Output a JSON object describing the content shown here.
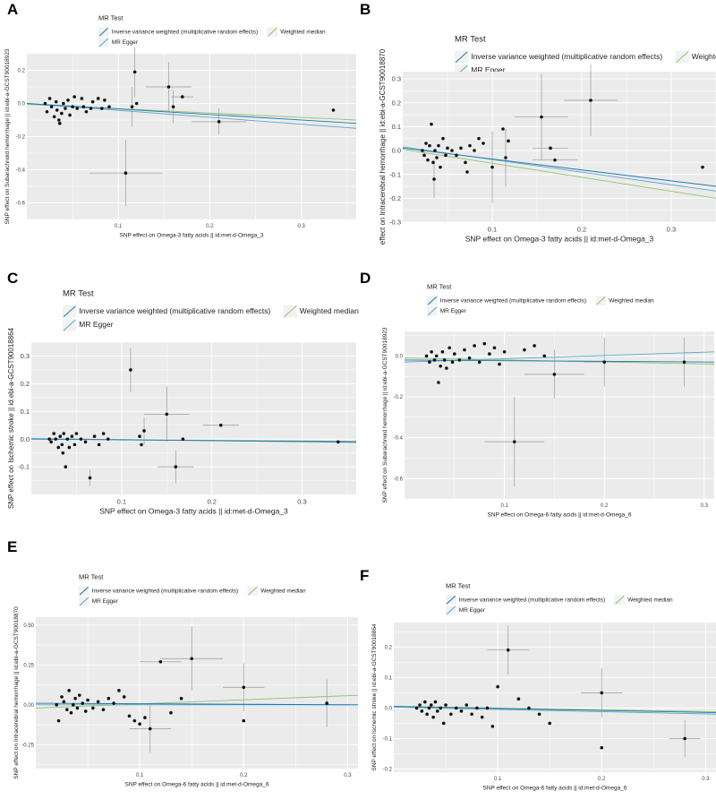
{
  "legend_title": "MR Test",
  "legend_items": [
    {
      "label": "Inverse variance weighted (multiplicative random effects)",
      "color": "#1f77b4"
    },
    {
      "label": "MR Egger",
      "color": "#5da6c9"
    },
    {
      "label": "Weighted median",
      "color": "#91c36b"
    }
  ],
  "colors": {
    "panel_bg": "#ebebeb",
    "grid": "#ffffff",
    "point": "#111111",
    "errorbar": "#9a9a9a"
  },
  "chart_data": [
    {
      "panel": "A",
      "type": "scatter",
      "xlabel": "SNP effect on Omega-3 fatty acids || id:met-d-Omega_3",
      "ylabel": "SNP effect on Subarachnoid hemorrhage || id:ebi-a-GCST90018923",
      "xlim": [
        0,
        0.36
      ],
      "ylim": [
        -0.7,
        0.3
      ],
      "xticks": [
        0.1,
        0.2,
        0.3
      ],
      "xtick_labels": [
        "0.1",
        "0.2",
        "0.3"
      ],
      "yticks": [
        0.2,
        0.0,
        -0.2,
        -0.4,
        -0.6
      ],
      "ytick_labels": [
        "0.2",
        "0.0",
        "-0.2",
        "-0.4",
        "-0.6"
      ],
      "points": [
        [
          0.02,
          0.0
        ],
        [
          0.022,
          -0.05
        ],
        [
          0.025,
          0.03
        ],
        [
          0.027,
          -0.02
        ],
        [
          0.03,
          -0.08
        ],
        [
          0.032,
          0.01
        ],
        [
          0.033,
          -0.04
        ],
        [
          0.035,
          -0.1
        ],
        [
          0.036,
          -0.12
        ],
        [
          0.038,
          -0.06
        ],
        [
          0.04,
          0.0
        ],
        [
          0.042,
          -0.03
        ],
        [
          0.045,
          0.02
        ],
        [
          0.047,
          -0.07
        ],
        [
          0.05,
          -0.02
        ],
        [
          0.052,
          0.04
        ],
        [
          0.055,
          -0.03
        ],
        [
          0.06,
          0.03
        ],
        [
          0.062,
          -0.02
        ],
        [
          0.065,
          -0.05
        ],
        [
          0.07,
          -0.03
        ],
        [
          0.072,
          0.01
        ],
        [
          0.078,
          0.03
        ],
        [
          0.082,
          -0.03
        ],
        [
          0.085,
          0.02
        ],
        [
          0.09,
          -0.02
        ],
        [
          0.108,
          -0.42
        ],
        [
          0.115,
          -0.02
        ],
        [
          0.118,
          0.19
        ],
        [
          0.12,
          0.0
        ],
        [
          0.155,
          0.1
        ],
        [
          0.16,
          -0.02
        ],
        [
          0.17,
          0.04
        ],
        [
          0.21,
          -0.11
        ],
        [
          0.335,
          -0.04
        ]
      ],
      "x_err": [
        [
          0.108,
          0.04
        ],
        [
          0.155,
          0.025
        ],
        [
          0.21,
          0.03
        ],
        [
          0.17,
          0.012
        ]
      ],
      "y_err": [
        [
          0.118,
          0.15
        ],
        [
          0.108,
          0.2
        ],
        [
          0.155,
          0.15
        ],
        [
          0.16,
          0.1
        ],
        [
          0.21,
          0.08
        ],
        [
          0.115,
          0.12
        ]
      ],
      "lines": {
        "ivw": [
          -0.0,
          -0.12
        ],
        "egger": [
          0.0,
          -0.15
        ],
        "wm": [
          -0.005,
          -0.1
        ]
      }
    },
    {
      "panel": "B",
      "type": "scatter",
      "xlabel": "SNP effect on Omega-3 fatty acids || id:met-d-Omega_3",
      "ylabel": "effect on Intracerebral hemorrhage || id:ebi-a-GCST90018870",
      "xlim": [
        0,
        0.35
      ],
      "ylim": [
        -0.3,
        0.33
      ],
      "xticks": [
        0.1,
        0.2,
        0.3
      ],
      "xtick_labels": [
        "0.1",
        "0.2",
        "0.3"
      ],
      "yticks": [
        0.3,
        0.2,
        0.1,
        0.0,
        -0.1,
        -0.2,
        -0.3
      ],
      "ytick_labels": [
        "0.3",
        "0.2",
        "0.1",
        "0.0",
        "-0.1",
        "-0.2",
        "-0.3"
      ],
      "points": [
        [
          0.022,
          0.0
        ],
        [
          0.024,
          -0.02
        ],
        [
          0.026,
          0.03
        ],
        [
          0.028,
          -0.04
        ],
        [
          0.03,
          0.02
        ],
        [
          0.032,
          0.11
        ],
        [
          0.034,
          -0.05
        ],
        [
          0.035,
          -0.12
        ],
        [
          0.036,
          0.0
        ],
        [
          0.038,
          -0.03
        ],
        [
          0.04,
          0.02
        ],
        [
          0.042,
          -0.07
        ],
        [
          0.045,
          0.05
        ],
        [
          0.048,
          -0.02
        ],
        [
          0.05,
          0.01
        ],
        [
          0.055,
          0.0
        ],
        [
          0.06,
          -0.02
        ],
        [
          0.065,
          0.01
        ],
        [
          0.07,
          -0.05
        ],
        [
          0.072,
          -0.09
        ],
        [
          0.075,
          0.02
        ],
        [
          0.08,
          0.0
        ],
        [
          0.085,
          0.05
        ],
        [
          0.09,
          0.03
        ],
        [
          0.1,
          -0.07
        ],
        [
          0.112,
          0.09
        ],
        [
          0.115,
          -0.03
        ],
        [
          0.118,
          0.04
        ],
        [
          0.155,
          0.14
        ],
        [
          0.165,
          0.01
        ],
        [
          0.17,
          -0.04
        ],
        [
          0.21,
          0.21
        ],
        [
          0.335,
          -0.07
        ]
      ],
      "x_err": [
        [
          0.21,
          0.03
        ],
        [
          0.155,
          0.03
        ],
        [
          0.165,
          0.02
        ],
        [
          0.17,
          0.025
        ]
      ],
      "y_err": [
        [
          0.21,
          0.15
        ],
        [
          0.155,
          0.18
        ],
        [
          0.1,
          0.15
        ],
        [
          0.115,
          0.12
        ],
        [
          0.035,
          0.08
        ]
      ],
      "lines": {
        "ivw": [
          0.01,
          -0.15
        ],
        "egger": [
          0.015,
          -0.17
        ],
        "wm": [
          0.005,
          -0.2
        ]
      }
    },
    {
      "panel": "C",
      "type": "scatter",
      "xlabel": "SNP effect on Omega-3 fatty acids || id:met-d-Omega_3",
      "ylabel": "SNP effect on Ischemic stroke || id:ebi-a-GCST90018864",
      "xlim": [
        0,
        0.36
      ],
      "ylim": [
        -0.2,
        0.35
      ],
      "xticks": [
        0.1,
        0.2,
        0.3
      ],
      "xtick_labels": [
        "0.1",
        "0.2",
        "0.3"
      ],
      "yticks": [
        0.3,
        0.2,
        0.1,
        0.0,
        -0.1
      ],
      "ytick_labels": [
        "0.3",
        "0.2",
        "0.1",
        "0.0",
        "-0.1"
      ],
      "points": [
        [
          0.02,
          0.0
        ],
        [
          0.022,
          -0.01
        ],
        [
          0.025,
          0.02
        ],
        [
          0.027,
          0.0
        ],
        [
          0.03,
          -0.03
        ],
        [
          0.032,
          0.01
        ],
        [
          0.034,
          -0.02
        ],
        [
          0.035,
          -0.05
        ],
        [
          0.036,
          0.02
        ],
        [
          0.038,
          -0.1
        ],
        [
          0.04,
          0.0
        ],
        [
          0.042,
          -0.03
        ],
        [
          0.045,
          0.01
        ],
        [
          0.048,
          -0.02
        ],
        [
          0.05,
          0.02
        ],
        [
          0.055,
          0.0
        ],
        [
          0.06,
          -0.01
        ],
        [
          0.065,
          -0.14
        ],
        [
          0.07,
          0.01
        ],
        [
          0.075,
          -0.02
        ],
        [
          0.08,
          0.02
        ],
        [
          0.085,
          0.0
        ],
        [
          0.11,
          0.25
        ],
        [
          0.12,
          0.01
        ],
        [
          0.122,
          -0.02
        ],
        [
          0.125,
          0.03
        ],
        [
          0.15,
          0.09
        ],
        [
          0.16,
          -0.1
        ],
        [
          0.168,
          0.0
        ],
        [
          0.21,
          0.05
        ],
        [
          0.34,
          -0.01
        ]
      ],
      "x_err": [
        [
          0.15,
          0.025
        ],
        [
          0.16,
          0.02
        ],
        [
          0.21,
          0.02
        ]
      ],
      "y_err": [
        [
          0.11,
          0.08
        ],
        [
          0.15,
          0.1
        ],
        [
          0.16,
          0.06
        ],
        [
          0.125,
          0.05
        ],
        [
          0.065,
          0.03
        ]
      ],
      "lines": {
        "ivw": [
          0.0,
          -0.01
        ],
        "egger": [
          0.002,
          -0.012
        ],
        "wm": [
          0.001,
          -0.008
        ]
      }
    },
    {
      "panel": "D",
      "type": "scatter",
      "xlabel": "SNP effect on Omega-6 fatty acids || id:met-d-Omega_6",
      "ylabel": "SNP effect on Subarachnoid hemorrhage || id:ebi-a-GCST90018923",
      "xlim": [
        0,
        0.31
      ],
      "ylim": [
        -0.7,
        0.12
      ],
      "xticks": [
        0.1,
        0.2,
        0.3
      ],
      "xtick_labels": [
        "0.1",
        "0.2",
        "0.3"
      ],
      "yticks": [
        0.0,
        -0.2,
        -0.4,
        -0.6
      ],
      "ytick_labels": [
        "0.0",
        "-0.2",
        "-0.4",
        "-0.6"
      ],
      "points": [
        [
          0.022,
          0.0
        ],
        [
          0.025,
          -0.03
        ],
        [
          0.027,
          0.02
        ],
        [
          0.03,
          -0.02
        ],
        [
          0.032,
          0.0
        ],
        [
          0.034,
          -0.13
        ],
        [
          0.036,
          -0.05
        ],
        [
          0.038,
          0.02
        ],
        [
          0.04,
          -0.02
        ],
        [
          0.042,
          -0.06
        ],
        [
          0.045,
          0.04
        ],
        [
          0.048,
          -0.03
        ],
        [
          0.05,
          0.01
        ],
        [
          0.055,
          -0.02
        ],
        [
          0.06,
          0.03
        ],
        [
          0.065,
          -0.01
        ],
        [
          0.07,
          0.05
        ],
        [
          0.075,
          -0.03
        ],
        [
          0.08,
          0.06
        ],
        [
          0.085,
          0.01
        ],
        [
          0.09,
          0.04
        ],
        [
          0.095,
          -0.04
        ],
        [
          0.1,
          0.02
        ],
        [
          0.11,
          -0.42
        ],
        [
          0.12,
          0.03
        ],
        [
          0.13,
          0.05
        ],
        [
          0.14,
          0.0
        ],
        [
          0.15,
          -0.09
        ],
        [
          0.2,
          -0.03
        ],
        [
          0.28,
          -0.03
        ]
      ],
      "x_err": [
        [
          0.11,
          0.03
        ],
        [
          0.15,
          0.03
        ],
        [
          0.2,
          0.02
        ]
      ],
      "y_err": [
        [
          0.11,
          0.22
        ],
        [
          0.15,
          0.12
        ],
        [
          0.2,
          0.12
        ],
        [
          0.28,
          0.12
        ]
      ],
      "lines": {
        "ivw": [
          -0.02,
          -0.03
        ],
        "egger": [
          -0.03,
          0.02
        ],
        "wm": [
          -0.01,
          -0.04
        ]
      }
    },
    {
      "panel": "E",
      "type": "scatter",
      "xlabel": "SNP effect on Omega-6 fatty acids || id:met-d-Omega_6",
      "ylabel": "SNP effect on Intracerebral hemorrhage || id:ebi-a-GCST90018870",
      "xlim": [
        0,
        0.31
      ],
      "ylim": [
        -0.4,
        0.55
      ],
      "xticks": [
        0.1,
        0.2,
        0.3
      ],
      "xtick_labels": [
        "0.1",
        "0.2",
        "0.3"
      ],
      "yticks": [
        0.5,
        0.25,
        0.0,
        -0.25
      ],
      "ytick_labels": [
        "0.50",
        "0.25",
        "0.00",
        "-0.25"
      ],
      "points": [
        [
          0.02,
          0.0
        ],
        [
          0.022,
          -0.1
        ],
        [
          0.025,
          0.05
        ],
        [
          0.027,
          0.02
        ],
        [
          0.03,
          -0.03
        ],
        [
          0.032,
          0.09
        ],
        [
          0.034,
          -0.05
        ],
        [
          0.036,
          0.0
        ],
        [
          0.038,
          0.04
        ],
        [
          0.04,
          -0.02
        ],
        [
          0.042,
          0.06
        ],
        [
          0.045,
          0.01
        ],
        [
          0.048,
          -0.04
        ],
        [
          0.05,
          0.03
        ],
        [
          0.055,
          -0.02
        ],
        [
          0.06,
          0.02
        ],
        [
          0.065,
          -0.03
        ],
        [
          0.07,
          0.04
        ],
        [
          0.075,
          0.01
        ],
        [
          0.08,
          0.09
        ],
        [
          0.085,
          0.05
        ],
        [
          0.09,
          -0.07
        ],
        [
          0.095,
          -0.1
        ],
        [
          0.1,
          -0.12
        ],
        [
          0.105,
          -0.08
        ],
        [
          0.11,
          -0.15
        ],
        [
          0.12,
          0.27
        ],
        [
          0.13,
          -0.05
        ],
        [
          0.14,
          0.04
        ],
        [
          0.15,
          0.29
        ],
        [
          0.2,
          0.11
        ],
        [
          0.2,
          -0.1
        ],
        [
          0.28,
          0.01
        ]
      ],
      "x_err": [
        [
          0.12,
          0.02
        ],
        [
          0.15,
          0.03
        ],
        [
          0.11,
          0.02
        ],
        [
          0.2,
          0.02
        ]
      ],
      "y_err": [
        [
          0.15,
          0.2
        ],
        [
          0.2,
          0.15
        ],
        [
          0.11,
          0.15
        ],
        [
          0.28,
          0.15
        ]
      ],
      "lines": {
        "ivw": [
          0.01,
          0.0
        ],
        "egger": [
          0.0,
          0.0
        ],
        "wm": [
          -0.02,
          0.06
        ]
      }
    },
    {
      "panel": "F",
      "type": "scatter",
      "xlabel": "SNP effect on Omega-6 fatty acids || id:met-d-Omega_6",
      "ylabel": "SNP effect on Ischemic stroke || id:ebi-a-GCST90018864",
      "xlim": [
        0,
        0.31
      ],
      "ylim": [
        -0.21,
        0.28
      ],
      "xticks": [
        0.1,
        0.2,
        0.3
      ],
      "xtick_labels": [
        "0.1",
        "0.2",
        "0.3"
      ],
      "yticks": [
        0.2,
        0.1,
        0.0,
        -0.1,
        -0.2
      ],
      "ytick_labels": [
        "0.2",
        "0.1",
        "0.0",
        "-0.1",
        "-0.2"
      ],
      "points": [
        [
          0.022,
          0.0
        ],
        [
          0.025,
          0.01
        ],
        [
          0.027,
          -0.01
        ],
        [
          0.03,
          0.02
        ],
        [
          0.032,
          -0.02
        ],
        [
          0.034,
          0.0
        ],
        [
          0.036,
          0.01
        ],
        [
          0.038,
          -0.03
        ],
        [
          0.04,
          0.02
        ],
        [
          0.042,
          -0.01
        ],
        [
          0.045,
          0.0
        ],
        [
          0.048,
          -0.05
        ],
        [
          0.05,
          0.01
        ],
        [
          0.055,
          -0.02
        ],
        [
          0.06,
          0.0
        ],
        [
          0.065,
          -0.01
        ],
        [
          0.07,
          0.01
        ],
        [
          0.075,
          -0.02
        ],
        [
          0.08,
          0.0
        ],
        [
          0.085,
          -0.03
        ],
        [
          0.09,
          0.0
        ],
        [
          0.095,
          -0.06
        ],
        [
          0.1,
          0.07
        ],
        [
          0.11,
          0.19
        ],
        [
          0.12,
          0.03
        ],
        [
          0.13,
          0.0
        ],
        [
          0.14,
          -0.02
        ],
        [
          0.15,
          -0.05
        ],
        [
          0.2,
          0.05
        ],
        [
          0.2,
          -0.13
        ],
        [
          0.28,
          -0.1
        ]
      ],
      "x_err": [
        [
          0.11,
          0.02
        ],
        [
          0.2,
          0.02
        ],
        [
          0.28,
          0.015
        ]
      ],
      "y_err": [
        [
          0.11,
          0.08
        ],
        [
          0.2,
          0.08
        ],
        [
          0.28,
          0.06
        ]
      ],
      "lines": {
        "ivw": [
          0.005,
          -0.015
        ],
        "egger": [
          0.003,
          -0.02
        ],
        "wm": [
          0.006,
          -0.012
        ]
      }
    }
  ]
}
